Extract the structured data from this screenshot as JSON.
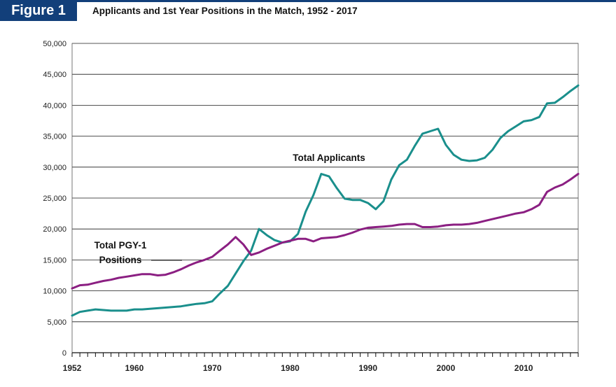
{
  "figure_label": "Figure 1",
  "chart_data": {
    "type": "line",
    "title": "Applicants and 1st Year Positions in the Match, 1952 - 2017",
    "xlabel": "",
    "ylabel": "",
    "xlim": [
      1952,
      2017
    ],
    "ylim": [
      0,
      50000
    ],
    "yticks": [
      0,
      5000,
      10000,
      15000,
      20000,
      25000,
      30000,
      35000,
      40000,
      45000,
      50000
    ],
    "ytick_labels": [
      "0",
      "5,000",
      "10,000",
      "15,000",
      "20,000",
      "25,000",
      "30,000",
      "35,000",
      "40,000",
      "45,000",
      "50,000"
    ],
    "xticks": [
      1952,
      1960,
      1970,
      1980,
      1990,
      2000,
      2010
    ],
    "xtick_labels": [
      "1952",
      "1960",
      "1970",
      "1980",
      "1990",
      "2000",
      "2010"
    ],
    "grid": true,
    "series": [
      {
        "name": "Total Applicants",
        "color": "#1a8f8c",
        "x": [
          1952,
          1953,
          1954,
          1955,
          1956,
          1957,
          1958,
          1959,
          1960,
          1961,
          1962,
          1963,
          1964,
          1965,
          1966,
          1967,
          1968,
          1969,
          1970,
          1971,
          1972,
          1973,
          1974,
          1975,
          1976,
          1977,
          1978,
          1979,
          1980,
          1981,
          1982,
          1983,
          1984,
          1985,
          1986,
          1987,
          1988,
          1989,
          1990,
          1991,
          1992,
          1993,
          1994,
          1995,
          1996,
          1997,
          1998,
          1999,
          2000,
          2001,
          2002,
          2003,
          2004,
          2005,
          2006,
          2007,
          2008,
          2009,
          2010,
          2011,
          2012,
          2013,
          2014,
          2015,
          2016,
          2017
        ],
        "values": [
          6000,
          6600,
          6800,
          7000,
          6900,
          6800,
          6800,
          6800,
          7000,
          7000,
          7100,
          7200,
          7300,
          7400,
          7500,
          7700,
          7900,
          8000,
          8300,
          9600,
          10800,
          12800,
          14800,
          16500,
          20000,
          19000,
          18200,
          17800,
          18000,
          19200,
          22800,
          25500,
          28900,
          28500,
          26600,
          24900,
          24700,
          24700,
          24200,
          23200,
          24500,
          28000,
          30300,
          31200,
          33400,
          35400,
          35800,
          36200,
          33600,
          32000,
          31200,
          31000,
          31100,
          31500,
          32800,
          34700,
          35800,
          36600,
          37400,
          37600,
          38100,
          40300,
          40400,
          41300,
          42300,
          43200
        ]
      },
      {
        "name": "Total PGY-1 Positions",
        "name_line1": "Total PGY-1",
        "name_line2": "Positions",
        "color": "#8b1f82",
        "x": [
          1952,
          1953,
          1954,
          1955,
          1956,
          1957,
          1958,
          1959,
          1960,
          1961,
          1962,
          1963,
          1964,
          1965,
          1966,
          1967,
          1968,
          1969,
          1970,
          1971,
          1972,
          1973,
          1974,
          1975,
          1976,
          1977,
          1978,
          1979,
          1980,
          1981,
          1982,
          1983,
          1984,
          1985,
          1986,
          1987,
          1988,
          1989,
          1990,
          1991,
          1992,
          1993,
          1994,
          1995,
          1996,
          1997,
          1998,
          1999,
          2000,
          2001,
          2002,
          2003,
          2004,
          2005,
          2006,
          2007,
          2008,
          2009,
          2010,
          2011,
          2012,
          2013,
          2014,
          2015,
          2016,
          2017
        ],
        "values": [
          10400,
          10900,
          11000,
          11300,
          11600,
          11800,
          12100,
          12300,
          12500,
          12700,
          12700,
          12500,
          12600,
          13000,
          13500,
          14100,
          14600,
          15000,
          15500,
          16500,
          17500,
          18700,
          17500,
          15800,
          16200,
          16800,
          17300,
          17800,
          18100,
          18400,
          18400,
          18000,
          18500,
          18600,
          18700,
          19000,
          19400,
          19900,
          20200,
          20300,
          20400,
          20500,
          20700,
          20800,
          20800,
          20300,
          20300,
          20400,
          20600,
          20700,
          20700,
          20800,
          21000,
          21300,
          21600,
          21900,
          22200,
          22500,
          22700,
          23200,
          23900,
          26000,
          26700,
          27200,
          28000,
          28900
        ]
      }
    ],
    "annotations": [
      {
        "text": "Total Applicants",
        "x": 1985,
        "y": 31000
      },
      {
        "text_line1": "Total PGY-1",
        "text_line2": "Positions"
      }
    ]
  }
}
